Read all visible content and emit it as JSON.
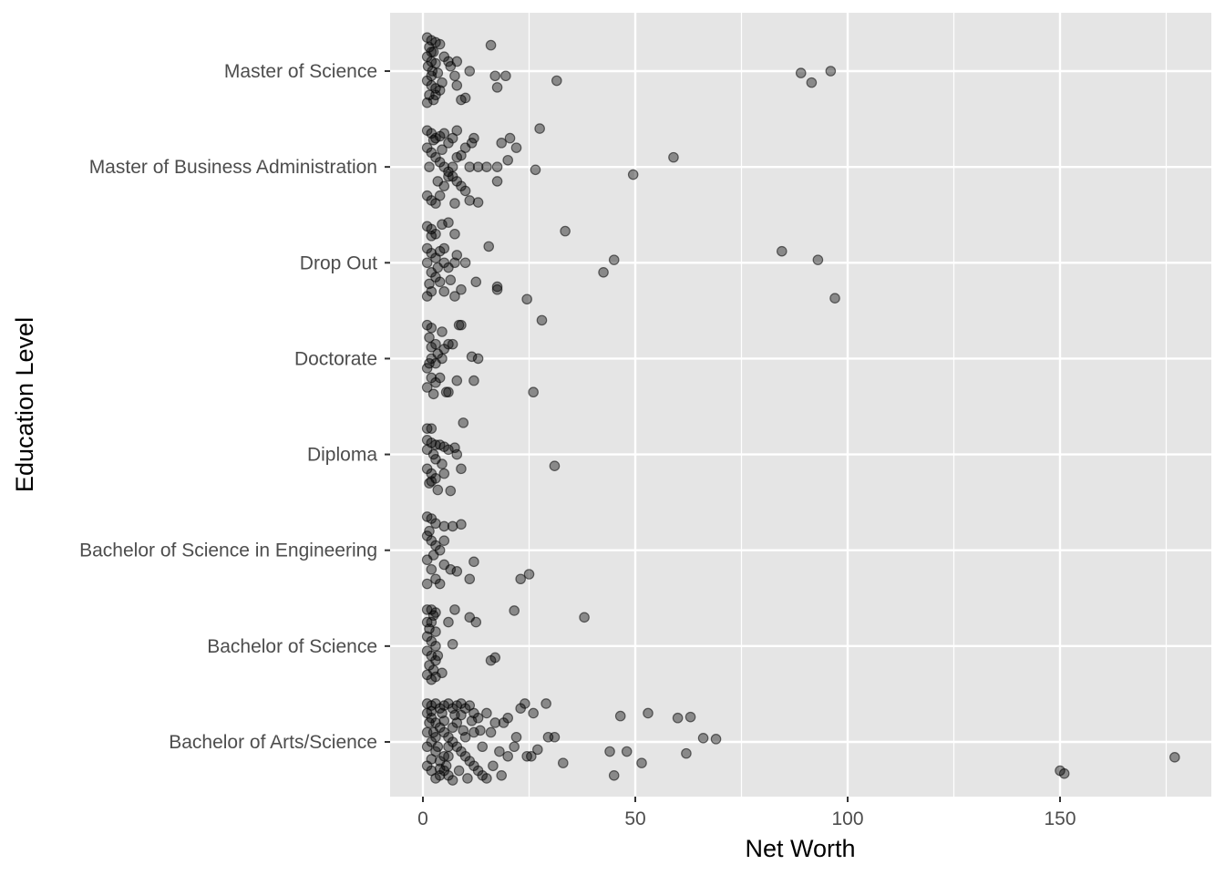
{
  "chart_data": {
    "type": "scatter",
    "title": "",
    "xlabel": "Net Worth",
    "ylabel": "Education Level",
    "xlim": [
      -8,
      185
    ],
    "x_ticks": [
      0,
      50,
      100,
      150
    ],
    "categories": [
      "Bachelor of Arts/Science",
      "Bachelor of Science",
      "Bachelor of Science in Engineering",
      "Diploma",
      "Doctorate",
      "Drop Out",
      "Master of Business Administration",
      "Master of Science"
    ],
    "grid": true,
    "legend": "none",
    "colors": {
      "panel": "#e5e5e5",
      "grid": "#ffffff",
      "point": "#000000",
      "point_opacity": 0.4
    },
    "points": {
      "Master of Science": [
        [
          1,
          0.35
        ],
        [
          2,
          0.32
        ],
        [
          3,
          0.3
        ],
        [
          1.5,
          0.25
        ],
        [
          2.5,
          0.2
        ],
        [
          4,
          0.28
        ],
        [
          1,
          0.15
        ],
        [
          2,
          0.1
        ],
        [
          3,
          0.08
        ],
        [
          1.2,
          0.05
        ],
        [
          2.2,
          0.0
        ],
        [
          3.5,
          -0.02
        ],
        [
          1,
          -0.1
        ],
        [
          2,
          -0.15
        ],
        [
          3,
          -0.18
        ],
        [
          1.5,
          -0.25
        ],
        [
          2.5,
          -0.3
        ],
        [
          1,
          -0.33
        ],
        [
          4,
          -0.2
        ],
        [
          2,
          -0.05
        ],
        [
          5,
          0.15
        ],
        [
          6,
          0.1
        ],
        [
          7.5,
          -0.05
        ],
        [
          8,
          -0.15
        ],
        [
          9,
          -0.3
        ],
        [
          10,
          -0.28
        ],
        [
          11,
          0.0
        ],
        [
          16,
          0.27
        ],
        [
          17,
          -0.05
        ],
        [
          17.5,
          -0.17
        ],
        [
          19.5,
          -0.05
        ],
        [
          31.5,
          -0.1
        ],
        [
          89,
          -0.02
        ],
        [
          91.5,
          -0.12
        ],
        [
          96,
          0.0
        ],
        [
          6.5,
          0.05
        ],
        [
          8,
          0.1
        ],
        [
          3,
          -0.25
        ],
        [
          2,
          0.2
        ],
        [
          4.5,
          -0.12
        ]
      ],
      "Master of Business Administration": [
        [
          1,
          0.38
        ],
        [
          2,
          0.35
        ],
        [
          3,
          0.3
        ],
        [
          4,
          0.32
        ],
        [
          5,
          0.35
        ],
        [
          6,
          0.25
        ],
        [
          7,
          0.3
        ],
        [
          8,
          0.38
        ],
        [
          10,
          0.2
        ],
        [
          12,
          0.3
        ],
        [
          1,
          0.2
        ],
        [
          2,
          0.15
        ],
        [
          3,
          0.1
        ],
        [
          4,
          0.05
        ],
        [
          5,
          0.0
        ],
        [
          6,
          -0.05
        ],
        [
          7,
          -0.1
        ],
        [
          8,
          -0.15
        ],
        [
          9,
          -0.2
        ],
        [
          10,
          -0.25
        ],
        [
          1,
          -0.3
        ],
        [
          2,
          -0.35
        ],
        [
          3,
          -0.38
        ],
        [
          4,
          -0.3
        ],
        [
          5,
          -0.2
        ],
        [
          6,
          -0.1
        ],
        [
          7,
          0.0
        ],
        [
          8,
          0.1
        ],
        [
          11,
          0.0
        ],
        [
          11.5,
          0.25
        ],
        [
          13,
          0.0
        ],
        [
          15,
          0.0
        ],
        [
          17.5,
          0.0
        ],
        [
          17.5,
          -0.15
        ],
        [
          18.5,
          0.25
        ],
        [
          20,
          0.07
        ],
        [
          20.5,
          0.3
        ],
        [
          22,
          0.2
        ],
        [
          26.5,
          -0.03
        ],
        [
          27.5,
          0.4
        ],
        [
          49.5,
          -0.08
        ],
        [
          59,
          0.1
        ],
        [
          1.5,
          0.0
        ],
        [
          2.5,
          0.28
        ],
        [
          3.5,
          -0.15
        ],
        [
          4.5,
          0.18
        ],
        [
          9,
          0.12
        ],
        [
          11,
          -0.35
        ],
        [
          13,
          -0.37
        ],
        [
          7.5,
          -0.38
        ]
      ],
      "Drop Out": [
        [
          1,
          0.38
        ],
        [
          2,
          0.35
        ],
        [
          3,
          0.3
        ],
        [
          4.5,
          0.4
        ],
        [
          6,
          0.42
        ],
        [
          7.5,
          0.3
        ],
        [
          1,
          0.15
        ],
        [
          2,
          0.1
        ],
        [
          3,
          0.05
        ],
        [
          4,
          0.12
        ],
        [
          5,
          0.0
        ],
        [
          6,
          -0.05
        ],
        [
          1,
          0.0
        ],
        [
          2,
          -0.1
        ],
        [
          3,
          -0.15
        ],
        [
          4,
          -0.2
        ],
        [
          5,
          -0.3
        ],
        [
          1,
          -0.35
        ],
        [
          2,
          -0.3
        ],
        [
          7.5,
          -0.35
        ],
        [
          7.5,
          0.0
        ],
        [
          9,
          -0.28
        ],
        [
          10,
          0.0
        ],
        [
          12.5,
          -0.2
        ],
        [
          15.5,
          0.17
        ],
        [
          17.5,
          -0.25
        ],
        [
          17.5,
          -0.28
        ],
        [
          24.5,
          -0.38
        ],
        [
          33.5,
          0.33
        ],
        [
          42.5,
          -0.1
        ],
        [
          45,
          0.03
        ],
        [
          84.5,
          0.12
        ],
        [
          93,
          0.03
        ],
        [
          97,
          -0.37
        ],
        [
          5,
          0.15
        ],
        [
          2,
          0.28
        ],
        [
          3.5,
          -0.05
        ],
        [
          6.5,
          -0.18
        ],
        [
          8,
          0.08
        ],
        [
          1.5,
          -0.22
        ]
      ],
      "Doctorate": [
        [
          1,
          0.35
        ],
        [
          2,
          0.32
        ],
        [
          4.5,
          0.28
        ],
        [
          8.5,
          0.35
        ],
        [
          9,
          0.35
        ],
        [
          1.5,
          0.22
        ],
        [
          3,
          0.15
        ],
        [
          5,
          0.1
        ],
        [
          6,
          0.15
        ],
        [
          7,
          0.15
        ],
        [
          2,
          0.0
        ],
        [
          3,
          -0.05
        ],
        [
          4.5,
          0.0
        ],
        [
          1,
          -0.1
        ],
        [
          2,
          -0.2
        ],
        [
          3,
          -0.25
        ],
        [
          5.5,
          -0.35
        ],
        [
          6,
          -0.35
        ],
        [
          1,
          -0.3
        ],
        [
          2.5,
          -0.37
        ],
        [
          8,
          -0.23
        ],
        [
          11.5,
          0.02
        ],
        [
          12,
          -0.23
        ],
        [
          13,
          0.0
        ],
        [
          26,
          -0.35
        ],
        [
          28,
          0.4
        ],
        [
          4,
          -0.2
        ],
        [
          1.5,
          -0.05
        ],
        [
          3.5,
          0.05
        ],
        [
          2,
          0.12
        ]
      ],
      "Diploma": [
        [
          1,
          0.27
        ],
        [
          2,
          0.27
        ],
        [
          9.5,
          0.33
        ],
        [
          1,
          0.15
        ],
        [
          2,
          0.12
        ],
        [
          3,
          0.1
        ],
        [
          4,
          0.1
        ],
        [
          5,
          0.08
        ],
        [
          6,
          0.05
        ],
        [
          7.5,
          0.07
        ],
        [
          8,
          0.0
        ],
        [
          1,
          -0.15
        ],
        [
          2,
          -0.2
        ],
        [
          3,
          -0.25
        ],
        [
          3.5,
          -0.37
        ],
        [
          5,
          -0.2
        ],
        [
          6.5,
          -0.38
        ],
        [
          9,
          -0.15
        ],
        [
          1.5,
          -0.3
        ],
        [
          31,
          -0.12
        ],
        [
          2.5,
          0.0
        ],
        [
          4.5,
          -0.1
        ],
        [
          1,
          0.05
        ],
        [
          3,
          -0.05
        ],
        [
          2,
          -0.28
        ]
      ],
      "Bachelor of Science in Engineering": [
        [
          1,
          0.35
        ],
        [
          2,
          0.33
        ],
        [
          3,
          0.28
        ],
        [
          5,
          0.25
        ],
        [
          7,
          0.25
        ],
        [
          9,
          0.27
        ],
        [
          1,
          0.15
        ],
        [
          2,
          0.1
        ],
        [
          3,
          0.05
        ],
        [
          5,
          0.1
        ],
        [
          1,
          -0.1
        ],
        [
          2,
          -0.2
        ],
        [
          3,
          -0.3
        ],
        [
          5,
          -0.15
        ],
        [
          6.5,
          -0.2
        ],
        [
          8,
          -0.22
        ],
        [
          11,
          -0.3
        ],
        [
          12,
          -0.12
        ],
        [
          4,
          -0.35
        ],
        [
          23,
          -0.3
        ],
        [
          25,
          -0.25
        ],
        [
          1.5,
          0.2
        ],
        [
          2.5,
          -0.05
        ],
        [
          4,
          0.0
        ],
        [
          1,
          -0.35
        ]
      ],
      "Bachelor of Science": [
        [
          1,
          0.38
        ],
        [
          2,
          0.38
        ],
        [
          3,
          0.35
        ],
        [
          7.5,
          0.38
        ],
        [
          11,
          0.3
        ],
        [
          12.5,
          0.25
        ],
        [
          21.5,
          0.37
        ],
        [
          38,
          0.3
        ],
        [
          1,
          0.25
        ],
        [
          2,
          0.25
        ],
        [
          3,
          0.15
        ],
        [
          6,
          0.25
        ],
        [
          1,
          0.1
        ],
        [
          2,
          0.05
        ],
        [
          3,
          0.0
        ],
        [
          1,
          -0.05
        ],
        [
          2,
          -0.1
        ],
        [
          3,
          -0.15
        ],
        [
          7,
          0.02
        ],
        [
          1.5,
          -0.2
        ],
        [
          2.5,
          -0.25
        ],
        [
          1,
          -0.3
        ],
        [
          2,
          -0.35
        ],
        [
          4.5,
          -0.28
        ],
        [
          16,
          -0.15
        ],
        [
          17,
          -0.12
        ],
        [
          3.5,
          -0.1
        ],
        [
          1.5,
          0.18
        ],
        [
          2.5,
          0.32
        ],
        [
          3,
          -0.32
        ]
      ],
      "Bachelor of Arts/Science": [
        [
          1,
          0.4
        ],
        [
          2,
          0.38
        ],
        [
          3,
          0.4
        ],
        [
          4,
          0.35
        ],
        [
          5,
          0.38
        ],
        [
          6,
          0.4
        ],
        [
          7,
          0.35
        ],
        [
          8,
          0.38
        ],
        [
          9,
          0.4
        ],
        [
          10,
          0.35
        ],
        [
          11,
          0.38
        ],
        [
          12,
          0.3
        ],
        [
          13,
          0.25
        ],
        [
          15,
          0.3
        ],
        [
          17,
          0.2
        ],
        [
          19,
          0.2
        ],
        [
          20,
          0.25
        ],
        [
          23,
          0.35
        ],
        [
          24,
          0.4
        ],
        [
          26,
          0.3
        ],
        [
          29,
          0.4
        ],
        [
          1,
          0.3
        ],
        [
          2,
          0.25
        ],
        [
          3,
          0.2
        ],
        [
          4,
          0.15
        ],
        [
          5,
          0.1
        ],
        [
          6,
          0.05
        ],
        [
          7,
          0.0
        ],
        [
          8,
          -0.05
        ],
        [
          9,
          -0.1
        ],
        [
          10,
          -0.15
        ],
        [
          11,
          -0.2
        ],
        [
          12,
          -0.25
        ],
        [
          13,
          -0.3
        ],
        [
          14,
          -0.35
        ],
        [
          15,
          -0.38
        ],
        [
          1,
          0.1
        ],
        [
          2,
          0.0
        ],
        [
          3,
          -0.1
        ],
        [
          4,
          -0.2
        ],
        [
          5,
          -0.3
        ],
        [
          6,
          -0.35
        ],
        [
          7,
          -0.4
        ],
        [
          1,
          -0.25
        ],
        [
          2,
          -0.3
        ],
        [
          3,
          -0.38
        ],
        [
          4,
          -0.35
        ],
        [
          5,
          -0.15
        ],
        [
          6,
          -0.05
        ],
        [
          7,
          0.15
        ],
        [
          8,
          0.2
        ],
        [
          9,
          0.28
        ],
        [
          10,
          0.05
        ],
        [
          12,
          0.1
        ],
        [
          14,
          -0.05
        ],
        [
          16,
          0.1
        ],
        [
          18,
          -0.1
        ],
        [
          20,
          -0.15
        ],
        [
          21.5,
          -0.05
        ],
        [
          22,
          0.05
        ],
        [
          24.5,
          -0.15
        ],
        [
          25.5,
          -0.15
        ],
        [
          27,
          -0.08
        ],
        [
          29.5,
          0.05
        ],
        [
          31,
          0.05
        ],
        [
          33,
          -0.22
        ],
        [
          44,
          -0.1
        ],
        [
          45,
          -0.35
        ],
        [
          46.5,
          0.27
        ],
        [
          48,
          -0.1
        ],
        [
          51.5,
          -0.22
        ],
        [
          53,
          0.3
        ],
        [
          60,
          0.25
        ],
        [
          62,
          -0.12
        ],
        [
          63,
          0.26
        ],
        [
          66,
          0.04
        ],
        [
          69,
          0.03
        ],
        [
          150,
          -0.3
        ],
        [
          151,
          -0.33
        ],
        [
          177,
          -0.16
        ],
        [
          1.5,
          0.2
        ],
        [
          2.5,
          0.1
        ],
        [
          3.5,
          -0.05
        ],
        [
          4.5,
          0.3
        ],
        [
          5.5,
          -0.25
        ],
        [
          2,
          0.32
        ],
        [
          3,
          0.05
        ],
        [
          4,
          -0.28
        ],
        [
          5,
          0.22
        ],
        [
          6,
          -0.15
        ],
        [
          7.5,
          0.28
        ],
        [
          8.5,
          -0.3
        ],
        [
          9.5,
          0.12
        ],
        [
          10.5,
          -0.38
        ],
        [
          11.5,
          0.22
        ],
        [
          13.5,
          0.12
        ],
        [
          16.5,
          -0.25
        ],
        [
          18.5,
          -0.35
        ],
        [
          1,
          -0.05
        ],
        [
          2,
          -0.18
        ]
      ]
    }
  }
}
